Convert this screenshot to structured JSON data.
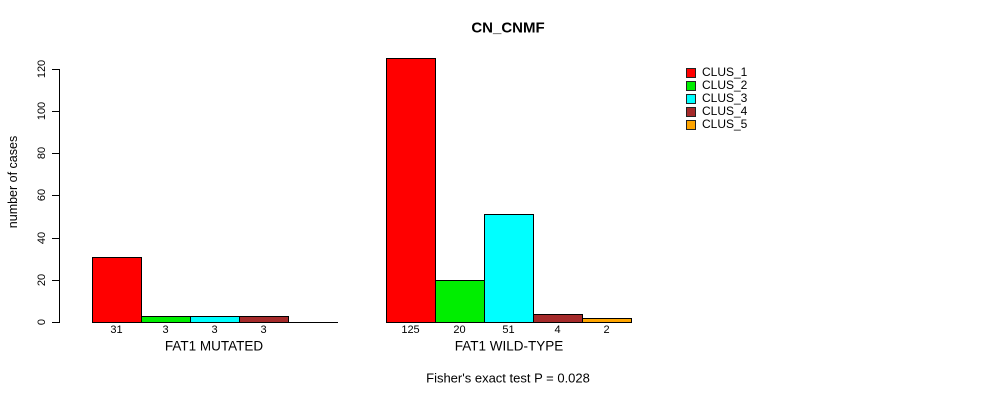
{
  "chart_data": {
    "type": "bar",
    "title": "CN_CNMF",
    "ylabel": "number of cases",
    "xlabel": "",
    "ylim": [
      0,
      120
    ],
    "yticks": [
      0,
      20,
      40,
      60,
      80,
      100,
      120
    ],
    "grid": false,
    "legend_position": "right",
    "series_names": [
      "CLUS_1",
      "CLUS_2",
      "CLUS_3",
      "CLUS_4",
      "CLUS_5"
    ],
    "series_colors": [
      "#ff0000",
      "#00ee00",
      "#00ffff",
      "#a52a2a",
      "#ffa500"
    ],
    "groups": [
      {
        "label": "FAT1 MUTATED",
        "values": [
          31,
          3,
          3,
          3,
          0
        ],
        "bar_labels": [
          "31",
          "3",
          "3",
          "3",
          ""
        ]
      },
      {
        "label": "FAT1 WILD-TYPE",
        "values": [
          125,
          20,
          51,
          4,
          2
        ],
        "bar_labels": [
          "125",
          "20",
          "51",
          "4",
          "2"
        ]
      }
    ],
    "annotation": "Fisher's exact test P = 0.028"
  }
}
